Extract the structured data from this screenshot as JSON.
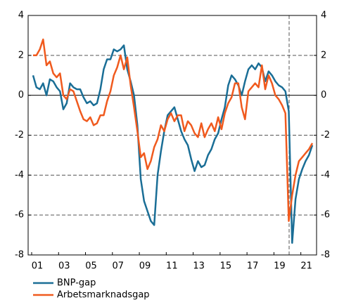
{
  "chart_data": {
    "type": "line",
    "categories": [
      "01",
      null,
      null,
      null,
      null,
      null,
      null,
      null,
      "03",
      null,
      null,
      null,
      null,
      null,
      null,
      null,
      "05",
      null,
      null,
      null,
      null,
      null,
      null,
      null,
      "07",
      null,
      null,
      null,
      null,
      null,
      null,
      null,
      "09",
      null,
      null,
      null,
      null,
      null,
      null,
      null,
      "11",
      null,
      null,
      null,
      null,
      null,
      null,
      null,
      "13",
      null,
      null,
      null,
      null,
      null,
      null,
      null,
      "15",
      null,
      null,
      null,
      null,
      null,
      null,
      null,
      "17",
      null,
      null,
      null,
      null,
      null,
      null,
      null,
      "19",
      null,
      null,
      null,
      null,
      null,
      null,
      null,
      "21",
      null,
      null,
      null
    ],
    "series": [
      {
        "name": "BNP-gap",
        "color": "#1a6e96",
        "values": [
          1.0,
          0.4,
          0.3,
          0.6,
          0.0,
          0.8,
          0.7,
          0.4,
          0.2,
          -0.7,
          -0.4,
          0.6,
          0.4,
          0.3,
          0.3,
          -0.1,
          -0.4,
          -0.3,
          -0.5,
          -0.4,
          0.3,
          1.3,
          1.8,
          1.8,
          2.3,
          2.2,
          2.3,
          2.5,
          1.3,
          0.7,
          0.0,
          -1.5,
          -4.2,
          -5.3,
          -5.8,
          -6.3,
          -6.5,
          -4.0,
          -2.8,
          -1.8,
          -1.0,
          -0.8,
          -0.6,
          -1.2,
          -1.8,
          -2.2,
          -2.5,
          -3.2,
          -3.8,
          -3.3,
          -3.6,
          -3.5,
          -3.0,
          -2.7,
          -2.2,
          -1.9,
          -1.2,
          -0.6,
          0.5,
          1.0,
          0.8,
          0.5,
          0.0,
          0.7,
          1.3,
          1.5,
          1.3,
          1.6,
          1.4,
          0.7,
          1.2,
          1.0,
          0.7,
          0.5,
          0.4,
          0.2,
          -0.8,
          -7.4,
          -5.2,
          -4.2,
          -3.7,
          -3.3,
          -3.0,
          -2.5
        ]
      },
      {
        "name": "Arbetsmarknadsgap",
        "color": "#f05a1e",
        "values": [
          2.0,
          2.0,
          2.3,
          2.8,
          1.5,
          1.7,
          1.1,
          0.9,
          1.1,
          0.0,
          -0.2,
          0.3,
          0.2,
          -0.3,
          -0.8,
          -1.2,
          -1.3,
          -1.1,
          -1.5,
          -1.4,
          -1.0,
          -1.0,
          -0.3,
          0.2,
          1.0,
          1.4,
          2.0,
          1.3,
          1.9,
          0.5,
          -0.6,
          -1.8,
          -3.1,
          -2.9,
          -3.7,
          -3.3,
          -2.6,
          -2.2,
          -1.5,
          -1.8,
          -1.2,
          -0.9,
          -1.3,
          -1.0,
          -1.0,
          -1.8,
          -1.3,
          -1.5,
          -1.9,
          -2.1,
          -1.4,
          -2.1,
          -1.7,
          -1.4,
          -1.8,
          -1.1,
          -1.7,
          -0.9,
          -0.4,
          -0.1,
          0.6,
          0.6,
          -0.6,
          -1.2,
          0.2,
          0.4,
          0.6,
          0.4,
          1.5,
          0.3,
          1.0,
          0.6,
          0.0,
          -0.2,
          -0.5,
          -0.9,
          -6.3,
          -5.0,
          -4.0,
          -3.3,
          -3.1,
          -2.9,
          -2.7,
          -2.4
        ]
      }
    ],
    "ylim": [
      -8,
      4
    ],
    "yticks": [
      -8,
      -6,
      -4,
      -2,
      0,
      2,
      4
    ],
    "y2lim": [
      -8,
      4
    ],
    "y2ticks": [
      -8,
      -6,
      -4,
      -2,
      0,
      2,
      4
    ],
    "grid": true
  }
}
